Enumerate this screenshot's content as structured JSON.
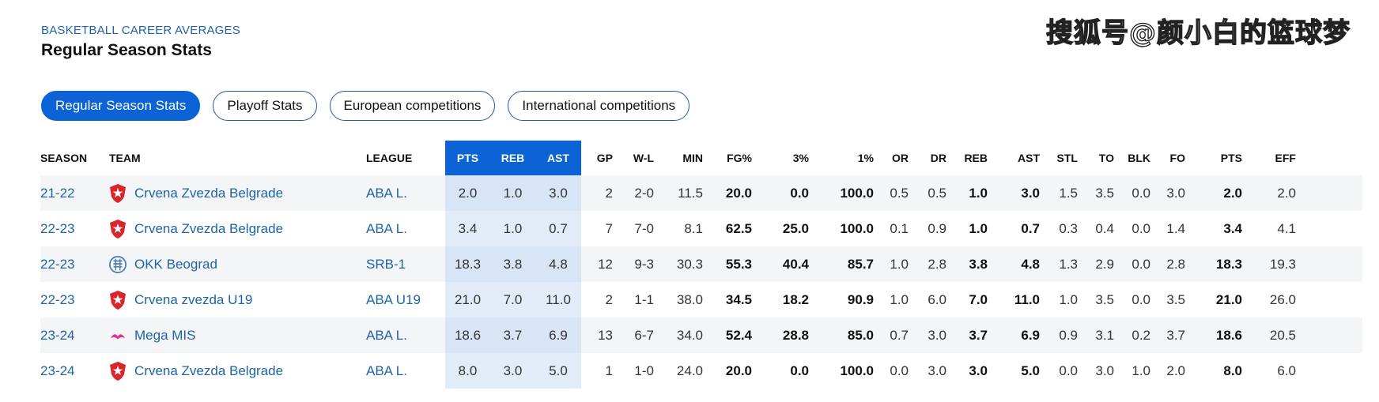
{
  "header": {
    "kicker": "BASKETBALL CAREER AVERAGES",
    "title": "Regular Season Stats",
    "watermark": "搜狐号@颜小白的篮球梦"
  },
  "tabs": [
    {
      "label": "Regular Season Stats",
      "active": true
    },
    {
      "label": "Playoff Stats",
      "active": false
    },
    {
      "label": "European competitions",
      "active": false
    },
    {
      "label": "International competitions",
      "active": false
    }
  ],
  "table": {
    "columns": [
      "SEASON",
      "TEAM",
      "LEAGUE",
      "PTS",
      "REB",
      "AST",
      "GP",
      "W-L",
      "MIN",
      "FG%",
      "3%",
      "1%",
      "OR",
      "DR",
      "REB",
      "AST",
      "STL",
      "TO",
      "BLK",
      "FO",
      "PTS",
      "EFF"
    ],
    "rows": [
      {
        "season": "21-22",
        "team": "Crvena Zvezda Belgrade",
        "logo": "crvena-zvezda-logo",
        "league": "ABA L.",
        "pts": "2.0",
        "reb": "1.0",
        "ast": "3.0",
        "gp": "2",
        "wl": "2-0",
        "min": "11.5",
        "fg": "20.0",
        "three": "0.0",
        "ft": "100.0",
        "or": "0.5",
        "dr": "0.5",
        "reb2": "1.0",
        "ast2": "3.0",
        "stl": "1.5",
        "to": "3.5",
        "blk": "0.0",
        "fo": "3.0",
        "pts2": "2.0",
        "eff": "2.0"
      },
      {
        "season": "22-23",
        "team": "Crvena Zvezda Belgrade",
        "logo": "crvena-zvezda-logo",
        "league": "ABA L.",
        "pts": "3.4",
        "reb": "1.0",
        "ast": "0.7",
        "gp": "7",
        "wl": "7-0",
        "min": "8.1",
        "fg": "62.5",
        "three": "25.0",
        "ft": "100.0",
        "or": "0.1",
        "dr": "0.9",
        "reb2": "1.0",
        "ast2": "0.7",
        "stl": "0.3",
        "to": "0.4",
        "blk": "0.0",
        "fo": "1.4",
        "pts2": "3.4",
        "eff": "4.1"
      },
      {
        "season": "22-23",
        "team": "OKK Beograd",
        "logo": "okk-beograd-logo",
        "league": "SRB-1",
        "pts": "18.3",
        "reb": "3.8",
        "ast": "4.8",
        "gp": "12",
        "wl": "9-3",
        "min": "30.3",
        "fg": "55.3",
        "three": "40.4",
        "ft": "85.7",
        "or": "1.0",
        "dr": "2.8",
        "reb2": "3.8",
        "ast2": "4.8",
        "stl": "1.3",
        "to": "2.9",
        "blk": "0.0",
        "fo": "2.8",
        "pts2": "18.3",
        "eff": "19.3"
      },
      {
        "season": "22-23",
        "team": "Crvena zvezda U19",
        "logo": "crvena-zvezda-logo",
        "league": "ABA U19",
        "pts": "21.0",
        "reb": "7.0",
        "ast": "11.0",
        "gp": "2",
        "wl": "1-1",
        "min": "38.0",
        "fg": "34.5",
        "three": "18.2",
        "ft": "90.9",
        "or": "1.0",
        "dr": "6.0",
        "reb2": "7.0",
        "ast2": "11.0",
        "stl": "1.0",
        "to": "3.5",
        "blk": "0.0",
        "fo": "3.5",
        "pts2": "21.0",
        "eff": "26.0"
      },
      {
        "season": "23-24",
        "team": "Mega MIS",
        "logo": "mega-mis-logo",
        "league": "ABA L.",
        "pts": "18.6",
        "reb": "3.7",
        "ast": "6.9",
        "gp": "13",
        "wl": "6-7",
        "min": "34.0",
        "fg": "52.4",
        "three": "28.8",
        "ft": "85.0",
        "or": "0.7",
        "dr": "3.0",
        "reb2": "3.7",
        "ast2": "6.9",
        "stl": "0.9",
        "to": "3.1",
        "blk": "0.2",
        "fo": "3.7",
        "pts2": "18.6",
        "eff": "20.5"
      },
      {
        "season": "23-24",
        "team": "Crvena Zvezda Belgrade",
        "logo": "crvena-zvezda-logo",
        "league": "ABA L.",
        "pts": "8.0",
        "reb": "3.0",
        "ast": "5.0",
        "gp": "1",
        "wl": "1-0",
        "min": "24.0",
        "fg": "20.0",
        "three": "0.0",
        "ft": "100.0",
        "or": "0.0",
        "dr": "3.0",
        "reb2": "3.0",
        "ast2": "5.0",
        "stl": "0.0",
        "to": "3.0",
        "blk": "1.0",
        "fo": "2.0",
        "pts2": "8.0",
        "eff": "6.0"
      }
    ]
  },
  "colors": {
    "accent": "#0b63d6",
    "link": "#1e63a8",
    "highlight": "#e2ecf9",
    "stripe": "#f4f5f7"
  }
}
